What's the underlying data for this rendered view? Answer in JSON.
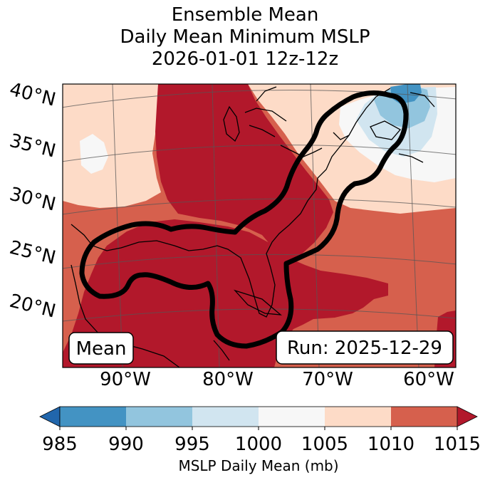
{
  "title": {
    "line1": "Ensemble Mean",
    "line2": "Daily Mean Minimum MSLP",
    "line3": "2026-01-01 12z-12z"
  },
  "map": {
    "lat_labels": [
      "40°N",
      "35°N",
      "30°N",
      "25°N",
      "20°N"
    ],
    "lon_labels": [
      "90°W",
      "80°W",
      "70°W",
      "60°W"
    ],
    "mean_label": "Mean",
    "run_label": "Run: 2025-12-29"
  },
  "colorbar": {
    "label": "MSLP Daily Mean (mb)",
    "ticks": [
      "985",
      "990",
      "995",
      "1000",
      "1005",
      "1010",
      "1015"
    ],
    "colors": [
      "#4393c3",
      "#92c5de",
      "#d1e5f0",
      "#f7f7f7",
      "#fddbc7",
      "#d6604d",
      "#b2182b"
    ],
    "under_color": "#2166ac",
    "over_color": "#b2182b"
  },
  "palette": {
    "deep_red": "#b2182b",
    "red": "#d6604d",
    "light_red": "#fddbc7",
    "white": "#f7f7f7",
    "light_blue": "#d1e5f0",
    "mid_blue": "#92c5de",
    "blue": "#4393c3"
  }
}
